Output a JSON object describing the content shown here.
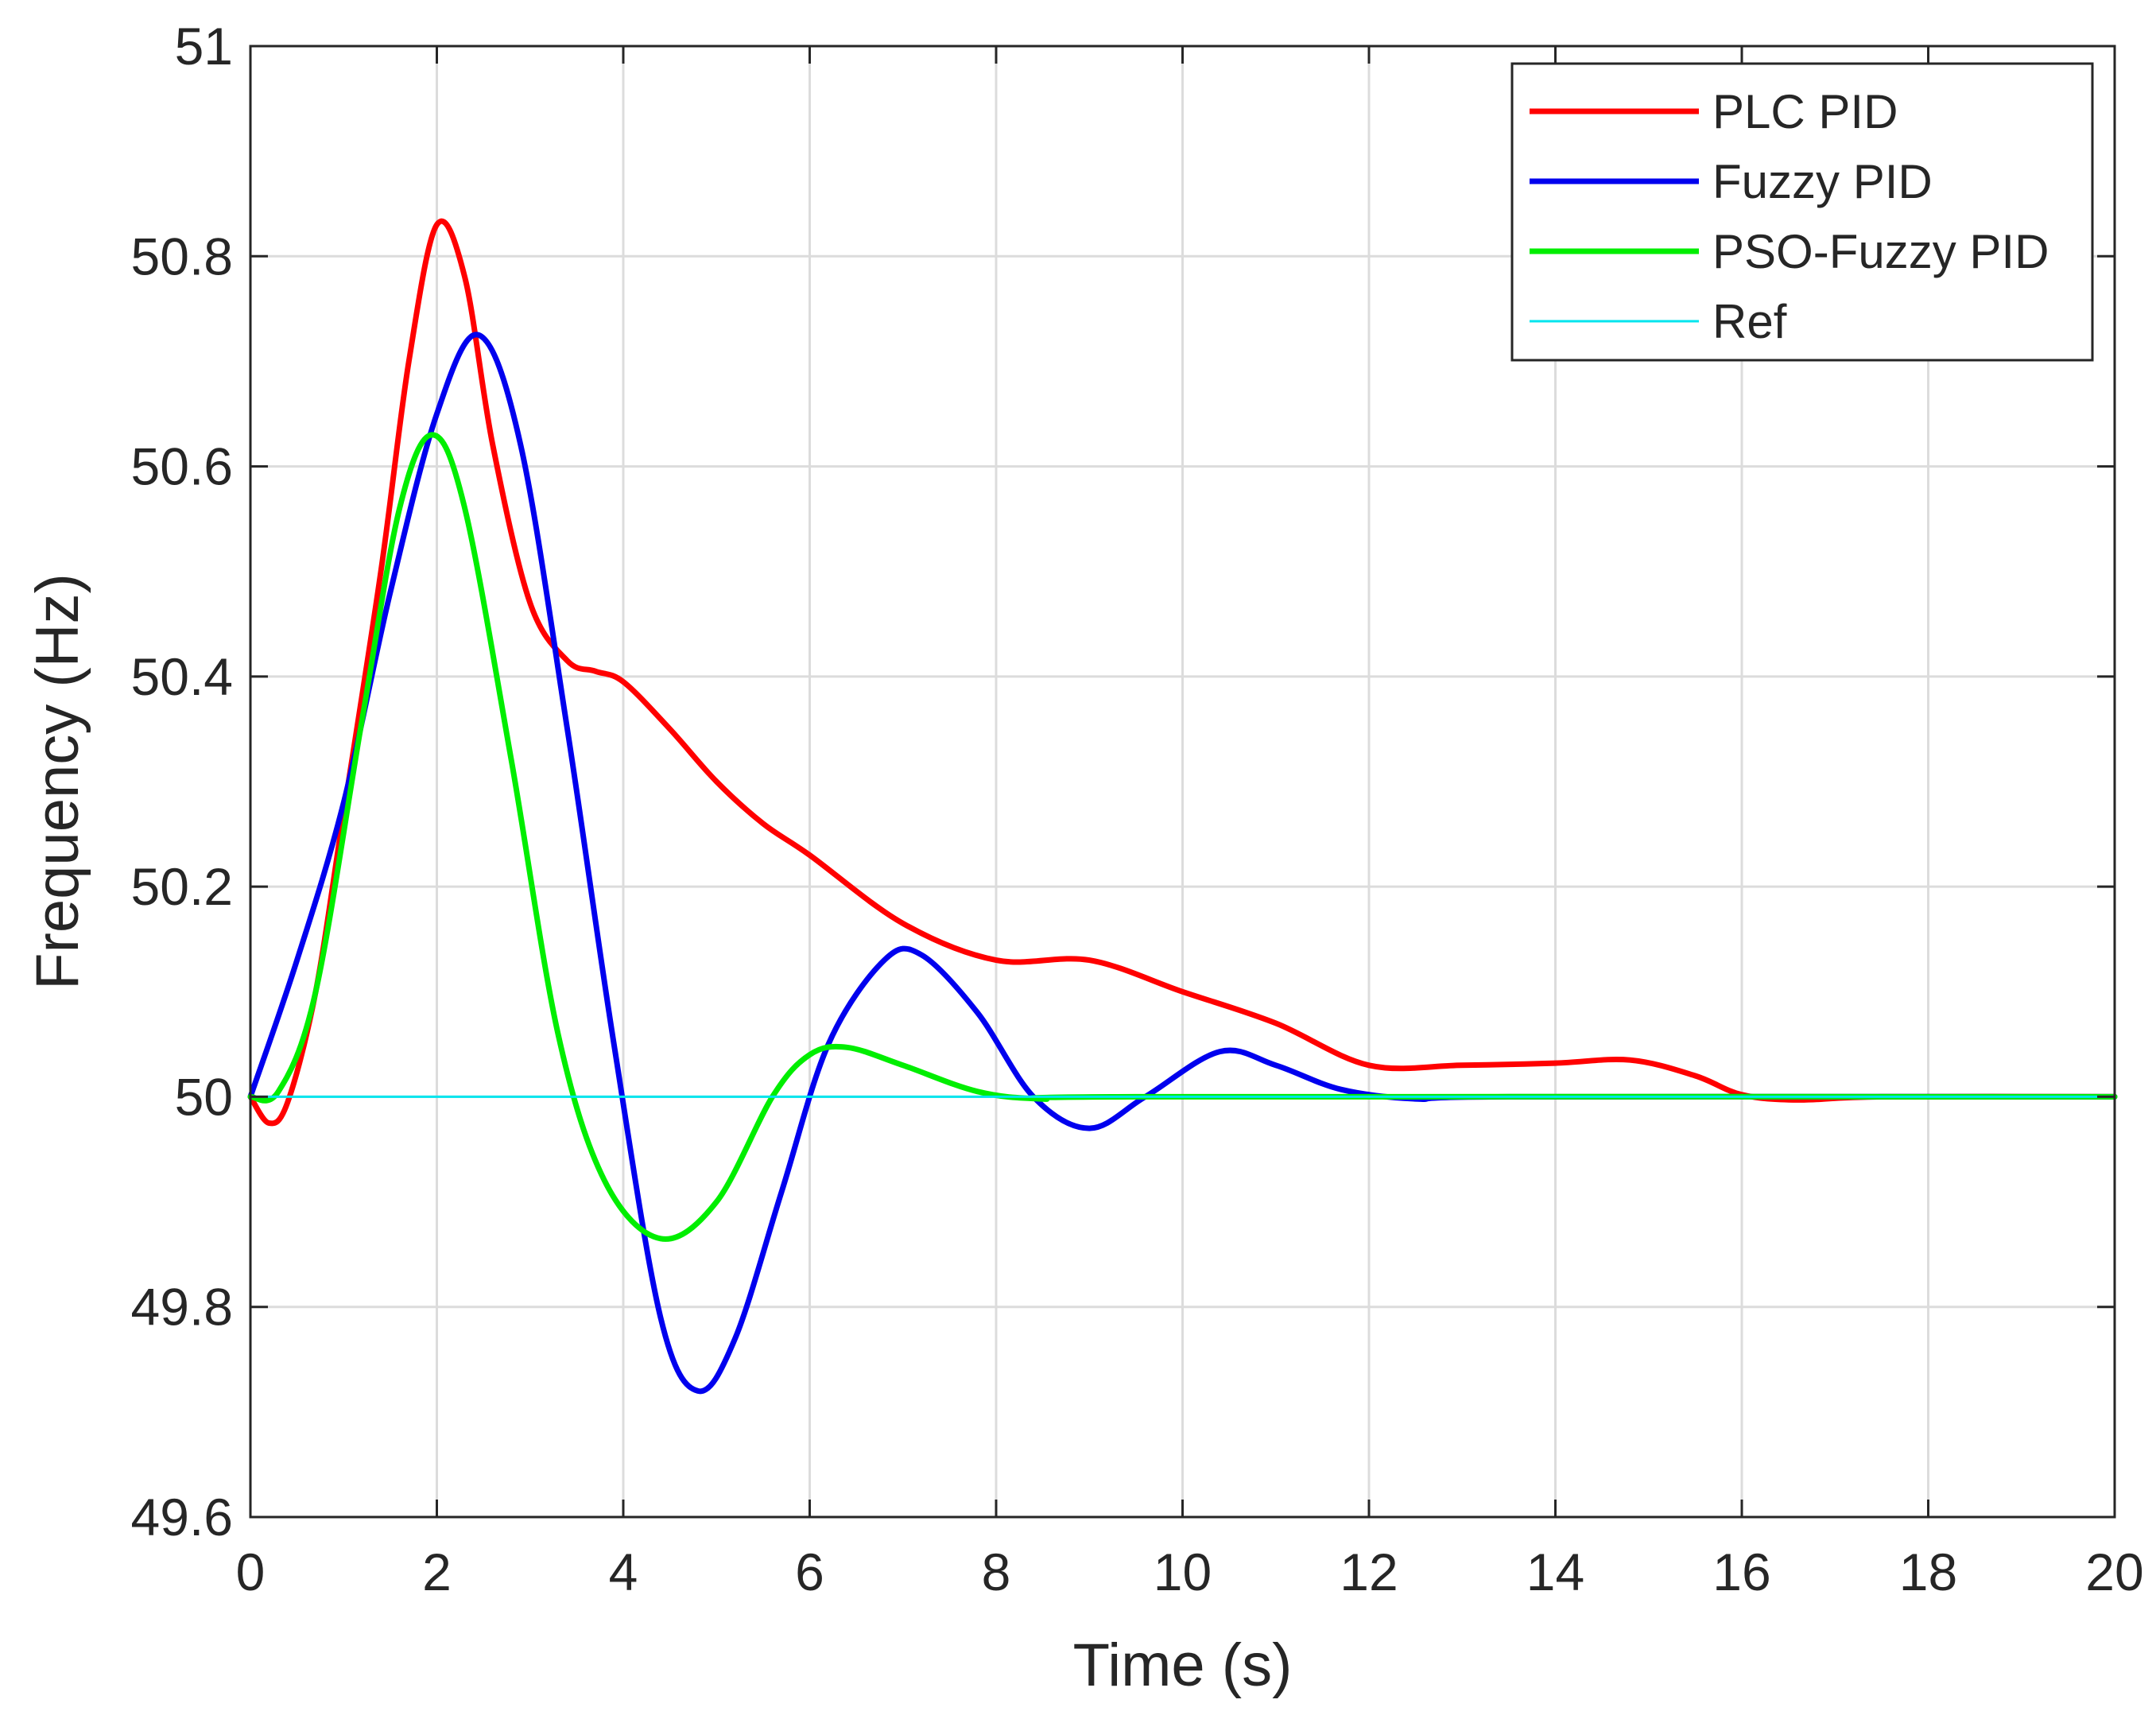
{
  "chart_data": {
    "type": "line",
    "title": "",
    "xlabel": "Time (s)",
    "ylabel": "Frequency (Hz)",
    "xlim": [
      0,
      20
    ],
    "ylim": [
      49.6,
      51
    ],
    "grid": true,
    "legend_position": "top-right",
    "x_ticks": [
      0,
      2,
      4,
      6,
      8,
      10,
      12,
      14,
      16,
      18,
      20
    ],
    "y_ticks": [
      49.6,
      49.8,
      50,
      50.2,
      50.4,
      50.6,
      50.8,
      51
    ],
    "x_tick_labels": [
      "0",
      "2",
      "4",
      "6",
      "8",
      "10",
      "12",
      "14",
      "16",
      "18",
      "20"
    ],
    "y_tick_labels": [
      "49.6",
      "49.8",
      "50",
      "50.2",
      "50.4",
      "50.6",
      "50.8",
      "51"
    ],
    "series": [
      {
        "name": "PLC PID",
        "color": "#ff0000",
        "line_width": 7,
        "points": [
          [
            0,
            50.0
          ],
          [
            0.2,
            49.975
          ],
          [
            0.4,
            49.995
          ],
          [
            0.7,
            50.1
          ],
          [
            1.0,
            50.27
          ],
          [
            1.4,
            50.5
          ],
          [
            1.7,
            50.7
          ],
          [
            2.0,
            50.83
          ],
          [
            2.3,
            50.78
          ],
          [
            2.6,
            50.62
          ],
          [
            3.0,
            50.47
          ],
          [
            3.4,
            50.415
          ],
          [
            3.7,
            50.405
          ],
          [
            4.0,
            50.395
          ],
          [
            4.5,
            50.35
          ],
          [
            5.0,
            50.3
          ],
          [
            5.5,
            50.26
          ],
          [
            6.0,
            50.23
          ],
          [
            7.0,
            50.165
          ],
          [
            8.0,
            50.13
          ],
          [
            9.0,
            50.13
          ],
          [
            10.0,
            50.1
          ],
          [
            11.0,
            50.07
          ],
          [
            12.0,
            50.03
          ],
          [
            13.0,
            50.03
          ],
          [
            14.0,
            50.032
          ],
          [
            14.8,
            50.035
          ],
          [
            15.5,
            50.02
          ],
          [
            16.0,
            50.002
          ],
          [
            16.6,
            49.997
          ],
          [
            17.5,
            50.0
          ],
          [
            20.0,
            50.0
          ]
        ]
      },
      {
        "name": "Fuzzy PID",
        "color": "#0000ee",
        "line_width": 7,
        "points": [
          [
            0,
            50.0
          ],
          [
            0.5,
            50.13
          ],
          [
            1.0,
            50.28
          ],
          [
            1.5,
            50.48
          ],
          [
            2.0,
            50.65
          ],
          [
            2.45,
            50.725
          ],
          [
            2.9,
            50.62
          ],
          [
            3.4,
            50.35
          ],
          [
            3.9,
            50.05
          ],
          [
            4.4,
            49.79
          ],
          [
            4.8,
            49.72
          ],
          [
            5.2,
            49.77
          ],
          [
            5.7,
            49.91
          ],
          [
            6.2,
            50.05
          ],
          [
            6.8,
            50.13
          ],
          [
            7.2,
            50.135
          ],
          [
            7.8,
            50.08
          ],
          [
            8.4,
            50.0
          ],
          [
            9.0,
            49.97
          ],
          [
            9.6,
            50.0
          ],
          [
            10.4,
            50.043
          ],
          [
            11.0,
            50.03
          ],
          [
            11.7,
            50.007
          ],
          [
            12.5,
            49.998
          ],
          [
            13.5,
            50.0
          ],
          [
            20.0,
            50.0
          ]
        ]
      },
      {
        "name": "PSO-Fuzzy PID",
        "color": "#00ee00",
        "line_width": 7,
        "points": [
          [
            0,
            50.0
          ],
          [
            0.3,
            50.005
          ],
          [
            0.7,
            50.1
          ],
          [
            1.2,
            50.36
          ],
          [
            1.6,
            50.56
          ],
          [
            1.95,
            50.63
          ],
          [
            2.3,
            50.56
          ],
          [
            2.8,
            50.32
          ],
          [
            3.3,
            50.06
          ],
          [
            3.8,
            49.92
          ],
          [
            4.4,
            49.865
          ],
          [
            5.0,
            49.9
          ],
          [
            5.6,
            50.0
          ],
          [
            6.0,
            50.04
          ],
          [
            6.4,
            50.047
          ],
          [
            7.0,
            50.03
          ],
          [
            7.8,
            50.005
          ],
          [
            8.5,
            49.998
          ],
          [
            9.5,
            50.0
          ],
          [
            20.0,
            50.0
          ]
        ]
      },
      {
        "name": "Ref",
        "color": "#00e5ee",
        "line_width": 3,
        "points": [
          [
            0,
            50.0
          ],
          [
            20,
            50.0
          ]
        ]
      }
    ]
  }
}
